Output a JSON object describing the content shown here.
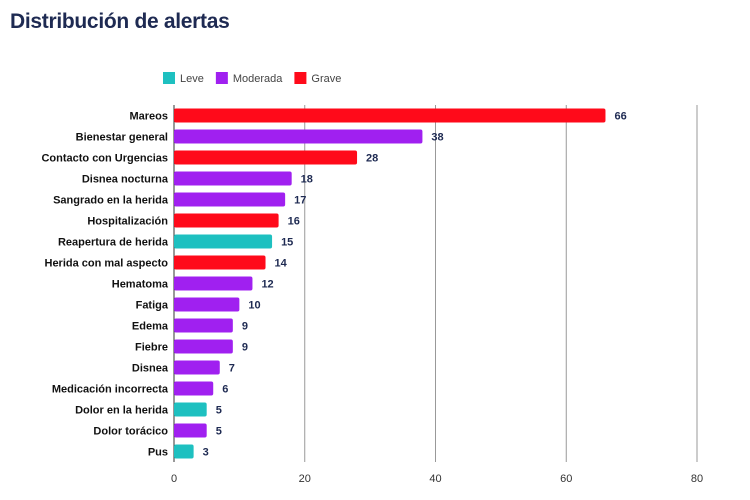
{
  "chart_data": {
    "type": "bar",
    "orientation": "horizontal",
    "title": "Distribución de alertas",
    "xlabel": "",
    "ylabel": "",
    "xlim": [
      0,
      80
    ],
    "x_ticks": [
      0,
      20,
      40,
      60,
      80
    ],
    "grid": "vertical",
    "legend_position": "top-left",
    "legend": [
      {
        "key": "leve",
        "label": "Leve",
        "color": "#1ec0c0"
      },
      {
        "key": "moderada",
        "label": "Moderada",
        "color": "#a020f0"
      },
      {
        "key": "grave",
        "label": "Grave",
        "color": "#ff0a1a"
      }
    ],
    "bars": [
      {
        "category": "Mareos",
        "value": 66,
        "severity": "grave"
      },
      {
        "category": "Bienestar general",
        "value": 38,
        "severity": "moderada"
      },
      {
        "category": "Contacto con Urgencias",
        "value": 28,
        "severity": "grave"
      },
      {
        "category": "Disnea nocturna",
        "value": 18,
        "severity": "moderada"
      },
      {
        "category": "Sangrado en la herida",
        "value": 17,
        "severity": "moderada"
      },
      {
        "category": "Hospitalización",
        "value": 16,
        "severity": "grave"
      },
      {
        "category": "Reapertura de herida",
        "value": 15,
        "severity": "leve"
      },
      {
        "category": "Herida con mal aspecto",
        "value": 14,
        "severity": "grave"
      },
      {
        "category": "Hematoma",
        "value": 12,
        "severity": "moderada"
      },
      {
        "category": "Fatiga",
        "value": 10,
        "severity": "moderada"
      },
      {
        "category": "Edema",
        "value": 9,
        "severity": "moderada"
      },
      {
        "category": "Fiebre",
        "value": 9,
        "severity": "moderada"
      },
      {
        "category": "Disnea",
        "value": 7,
        "severity": "moderada"
      },
      {
        "category": "Medicación incorrecta",
        "value": 6,
        "severity": "moderada"
      },
      {
        "category": "Dolor en la herida",
        "value": 5,
        "severity": "leve"
      },
      {
        "category": "Dolor torácico",
        "value": 5,
        "severity": "moderada"
      },
      {
        "category": "Pus",
        "value": 3,
        "severity": "leve"
      }
    ]
  }
}
